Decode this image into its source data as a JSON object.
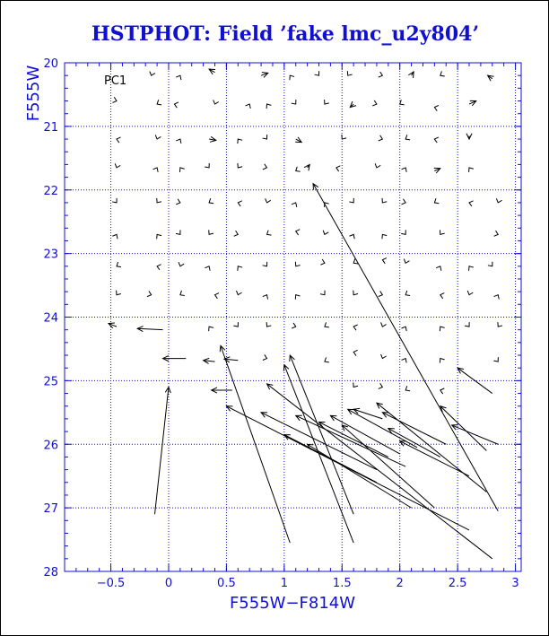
{
  "chart_data": {
    "type": "scatter",
    "title": "HSTPHOT: Field ’fake lmc_u2y804’",
    "xlabel": "F555W−F814W",
    "ylabel": "F555W",
    "xlim": [
      -0.9,
      3.05
    ],
    "ylim": [
      28,
      20
    ],
    "y_inverted": true,
    "grid": true,
    "annotation": "PC1",
    "xticks": [
      "−0.5",
      "0",
      "0.5",
      "1",
      "1.5",
      "2",
      "2.5",
      "3"
    ],
    "xtick_values": [
      -0.5,
      0,
      0.5,
      1,
      1.5,
      2,
      2.5,
      3
    ],
    "yticks": [
      "20",
      "21",
      "22",
      "23",
      "24",
      "25",
      "26",
      "27",
      "28"
    ],
    "ytick_values": [
      20,
      21,
      22,
      23,
      24,
      25,
      26,
      27,
      28
    ],
    "vectors_note": "Arrows point from input (x0,y0) to measured (x1,y1) values",
    "vectors": [
      {
        "x0": 2.1,
        "y0": 20.2,
        "x1": 2.12,
        "y1": 20.14
      },
      {
        "x0": 2.8,
        "y0": 20.25,
        "x1": 2.76,
        "y1": 20.2
      },
      {
        "x0": 0.4,
        "y0": 20.15,
        "x1": 0.35,
        "y1": 20.1
      },
      {
        "x0": 0.8,
        "y0": 20.2,
        "x1": 0.86,
        "y1": 20.16
      },
      {
        "x0": 1.6,
        "y0": 20.65,
        "x1": 1.57,
        "y1": 20.7
      },
      {
        "x0": 2.6,
        "y0": 20.65,
        "x1": 2.66,
        "y1": 20.6
      },
      {
        "x0": 2.6,
        "y0": 21.15,
        "x1": 2.6,
        "y1": 21.2
      },
      {
        "x0": 1.1,
        "y0": 21.2,
        "x1": 1.15,
        "y1": 21.25
      },
      {
        "x0": 0.35,
        "y0": 21.2,
        "x1": 0.41,
        "y1": 21.22
      },
      {
        "x0": 1.2,
        "y0": 21.65,
        "x1": 1.22,
        "y1": 21.6
      },
      {
        "x0": 2.3,
        "y0": 21.7,
        "x1": 2.35,
        "y1": 21.66
      },
      {
        "x0": -0.45,
        "y0": 24.15,
        "x1": -0.52,
        "y1": 24.1
      },
      {
        "x0": -0.05,
        "y0": 24.2,
        "x1": -0.27,
        "y1": 24.18
      },
      {
        "x0": 0.15,
        "y0": 24.65,
        "x1": -0.05,
        "y1": 24.65
      },
      {
        "x0": 0.4,
        "y0": 24.7,
        "x1": 0.3,
        "y1": 24.68
      },
      {
        "x0": 0.6,
        "y0": 24.68,
        "x1": 0.48,
        "y1": 24.66
      },
      {
        "x0": 0.55,
        "y0": 25.15,
        "x1": 0.37,
        "y1": 25.15
      },
      {
        "x0": -0.12,
        "y0": 27.1,
        "x1": 0.0,
        "y1": 25.1
      },
      {
        "x0": 1.05,
        "y0": 27.55,
        "x1": 0.45,
        "y1": 24.45
      },
      {
        "x0": 2.85,
        "y0": 27.05,
        "x1": 1.25,
        "y1": 21.9
      },
      {
        "x0": 1.6,
        "y0": 27.55,
        "x1": 1.0,
        "y1": 24.75
      },
      {
        "x0": 1.6,
        "y0": 27.1,
        "x1": 1.05,
        "y1": 24.6
      },
      {
        "x0": 2.75,
        "y0": 26.1,
        "x1": 2.35,
        "y1": 25.4
      },
      {
        "x0": 2.85,
        "y0": 26.0,
        "x1": 2.45,
        "y1": 25.7
      },
      {
        "x0": 2.8,
        "y0": 25.2,
        "x1": 2.5,
        "y1": 24.8
      },
      {
        "x0": 2.75,
        "y0": 26.75,
        "x1": 1.8,
        "y1": 25.35
      },
      {
        "x0": 2.8,
        "y0": 27.8,
        "x1": 0.85,
        "y1": 25.05
      },
      {
        "x0": 2.6,
        "y0": 27.35,
        "x1": 0.5,
        "y1": 25.4
      },
      {
        "x0": 2.3,
        "y0": 27.0,
        "x1": 1.5,
        "y1": 25.7
      },
      {
        "x0": 2.1,
        "y0": 27.0,
        "x1": 1.2,
        "y1": 26.0
      },
      {
        "x0": 2.35,
        "y0": 26.2,
        "x1": 1.9,
        "y1": 25.75
      },
      {
        "x0": 2.6,
        "y0": 26.5,
        "x1": 2.0,
        "y1": 25.95
      },
      {
        "x0": 1.8,
        "y0": 26.6,
        "x1": 1.0,
        "y1": 25.85
      },
      {
        "x0": 1.8,
        "y0": 26.4,
        "x1": 0.8,
        "y1": 25.5
      },
      {
        "x0": 2.05,
        "y0": 26.35,
        "x1": 1.1,
        "y1": 25.55
      },
      {
        "x0": 1.9,
        "y0": 26.2,
        "x1": 1.3,
        "y1": 25.65
      },
      {
        "x0": 2.0,
        "y0": 26.15,
        "x1": 1.4,
        "y1": 25.55
      },
      {
        "x0": 2.15,
        "y0": 26.05,
        "x1": 1.55,
        "y1": 25.45
      },
      {
        "x0": 2.4,
        "y0": 26.0,
        "x1": 1.85,
        "y1": 25.5
      },
      {
        "x0": 1.85,
        "y0": 25.6,
        "x1": 1.6,
        "y1": 25.45
      }
    ],
    "markers": [
      {
        "x": -0.45,
        "y": 20.6
      },
      {
        "x": -0.1,
        "y": 20.65
      },
      {
        "x": 0.05,
        "y": 20.65
      },
      {
        "x": 0.4,
        "y": 20.65
      },
      {
        "x": 0.7,
        "y": 20.65
      },
      {
        "x": 0.85,
        "y": 20.65
      },
      {
        "x": 1.1,
        "y": 20.65
      },
      {
        "x": 1.35,
        "y": 20.65
      },
      {
        "x": 1.8,
        "y": 20.65
      },
      {
        "x": 2.0,
        "y": 20.65
      },
      {
        "x": 2.3,
        "y": 20.7
      },
      {
        "x": -0.15,
        "y": 20.2
      },
      {
        "x": 0.1,
        "y": 20.2
      },
      {
        "x": 1.05,
        "y": 20.2
      },
      {
        "x": 1.3,
        "y": 20.2
      },
      {
        "x": 1.55,
        "y": 20.2
      },
      {
        "x": 1.85,
        "y": 20.2
      },
      {
        "x": 2.35,
        "y": 20.2
      },
      {
        "x": -0.45,
        "y": 21.2
      },
      {
        "x": -0.1,
        "y": 21.2
      },
      {
        "x": 0.1,
        "y": 21.2
      },
      {
        "x": 0.6,
        "y": 21.2
      },
      {
        "x": 0.85,
        "y": 21.2
      },
      {
        "x": 1.5,
        "y": 21.2
      },
      {
        "x": 1.85,
        "y": 21.2
      },
      {
        "x": 2.05,
        "y": 21.2
      },
      {
        "x": 2.3,
        "y": 21.2
      },
      {
        "x": -0.45,
        "y": 21.65
      },
      {
        "x": -0.1,
        "y": 21.65
      },
      {
        "x": 0.1,
        "y": 21.65
      },
      {
        "x": 0.35,
        "y": 21.65
      },
      {
        "x": 0.6,
        "y": 21.65
      },
      {
        "x": 0.85,
        "y": 21.65
      },
      {
        "x": 1.1,
        "y": 21.7
      },
      {
        "x": 1.45,
        "y": 21.65
      },
      {
        "x": 1.8,
        "y": 21.65
      },
      {
        "x": 2.05,
        "y": 21.65
      },
      {
        "x": 2.6,
        "y": 21.65
      },
      {
        "x": -0.45,
        "y": 22.2
      },
      {
        "x": -0.1,
        "y": 22.2
      },
      {
        "x": 0.1,
        "y": 22.2
      },
      {
        "x": 0.35,
        "y": 22.2
      },
      {
        "x": 0.6,
        "y": 22.2
      },
      {
        "x": 0.85,
        "y": 22.2
      },
      {
        "x": 1.1,
        "y": 22.2
      },
      {
        "x": 1.35,
        "y": 22.2
      },
      {
        "x": 1.6,
        "y": 22.2
      },
      {
        "x": 1.85,
        "y": 22.2
      },
      {
        "x": 2.05,
        "y": 22.2
      },
      {
        "x": 2.3,
        "y": 22.2
      },
      {
        "x": 2.6,
        "y": 22.2
      },
      {
        "x": 2.85,
        "y": 22.2
      },
      {
        "x": -0.45,
        "y": 22.7
      },
      {
        "x": -0.1,
        "y": 22.7
      },
      {
        "x": 0.1,
        "y": 22.7
      },
      {
        "x": 0.35,
        "y": 22.7
      },
      {
        "x": 0.6,
        "y": 22.7
      },
      {
        "x": 0.85,
        "y": 22.7
      },
      {
        "x": 1.1,
        "y": 22.65
      },
      {
        "x": 1.35,
        "y": 22.7
      },
      {
        "x": 1.6,
        "y": 22.7
      },
      {
        "x": 1.85,
        "y": 22.7
      },
      {
        "x": 2.05,
        "y": 22.7
      },
      {
        "x": 2.35,
        "y": 22.7
      },
      {
        "x": 2.85,
        "y": 22.7
      },
      {
        "x": -0.45,
        "y": 23.2
      },
      {
        "x": -0.1,
        "y": 23.2
      },
      {
        "x": 0.1,
        "y": 23.2
      },
      {
        "x": 0.35,
        "y": 23.2
      },
      {
        "x": 0.6,
        "y": 23.2
      },
      {
        "x": 0.85,
        "y": 23.2
      },
      {
        "x": 1.1,
        "y": 23.2
      },
      {
        "x": 1.35,
        "y": 23.15
      },
      {
        "x": 1.6,
        "y": 23.15
      },
      {
        "x": 1.85,
        "y": 23.1
      },
      {
        "x": 2.05,
        "y": 23.15
      },
      {
        "x": 2.35,
        "y": 23.2
      },
      {
        "x": 2.6,
        "y": 23.2
      },
      {
        "x": 2.8,
        "y": 23.2
      },
      {
        "x": -0.45,
        "y": 23.65
      },
      {
        "x": -0.15,
        "y": 23.65
      },
      {
        "x": 0.1,
        "y": 23.65
      },
      {
        "x": 0.4,
        "y": 23.65
      },
      {
        "x": 0.6,
        "y": 23.65
      },
      {
        "x": 0.85,
        "y": 23.65
      },
      {
        "x": 1.1,
        "y": 23.65
      },
      {
        "x": 1.35,
        "y": 23.65
      },
      {
        "x": 1.6,
        "y": 23.65
      },
      {
        "x": 1.85,
        "y": 23.65
      },
      {
        "x": 2.05,
        "y": 23.65
      },
      {
        "x": 2.35,
        "y": 23.65
      },
      {
        "x": 2.6,
        "y": 23.65
      },
      {
        "x": 2.85,
        "y": 23.65
      },
      {
        "x": 0.35,
        "y": 24.15
      },
      {
        "x": 0.6,
        "y": 24.15
      },
      {
        "x": 0.85,
        "y": 24.15
      },
      {
        "x": 1.1,
        "y": 24.15
      },
      {
        "x": 1.35,
        "y": 24.15
      },
      {
        "x": 1.6,
        "y": 24.15
      },
      {
        "x": 1.85,
        "y": 24.15
      },
      {
        "x": 2.05,
        "y": 24.15
      },
      {
        "x": 2.35,
        "y": 24.15
      },
      {
        "x": 2.6,
        "y": 24.15
      },
      {
        "x": 2.85,
        "y": 24.15
      },
      {
        "x": 0.85,
        "y": 24.65
      },
      {
        "x": 1.35,
        "y": 24.7
      },
      {
        "x": 1.6,
        "y": 24.55
      },
      {
        "x": 1.85,
        "y": 24.65
      },
      {
        "x": 2.05,
        "y": 24.65
      },
      {
        "x": 2.35,
        "y": 24.65
      },
      {
        "x": 2.85,
        "y": 24.7
      },
      {
        "x": 1.6,
        "y": 25.1
      },
      {
        "x": 1.85,
        "y": 25.1
      },
      {
        "x": 2.05,
        "y": 25.15
      },
      {
        "x": 2.35,
        "y": 25.15
      }
    ]
  }
}
